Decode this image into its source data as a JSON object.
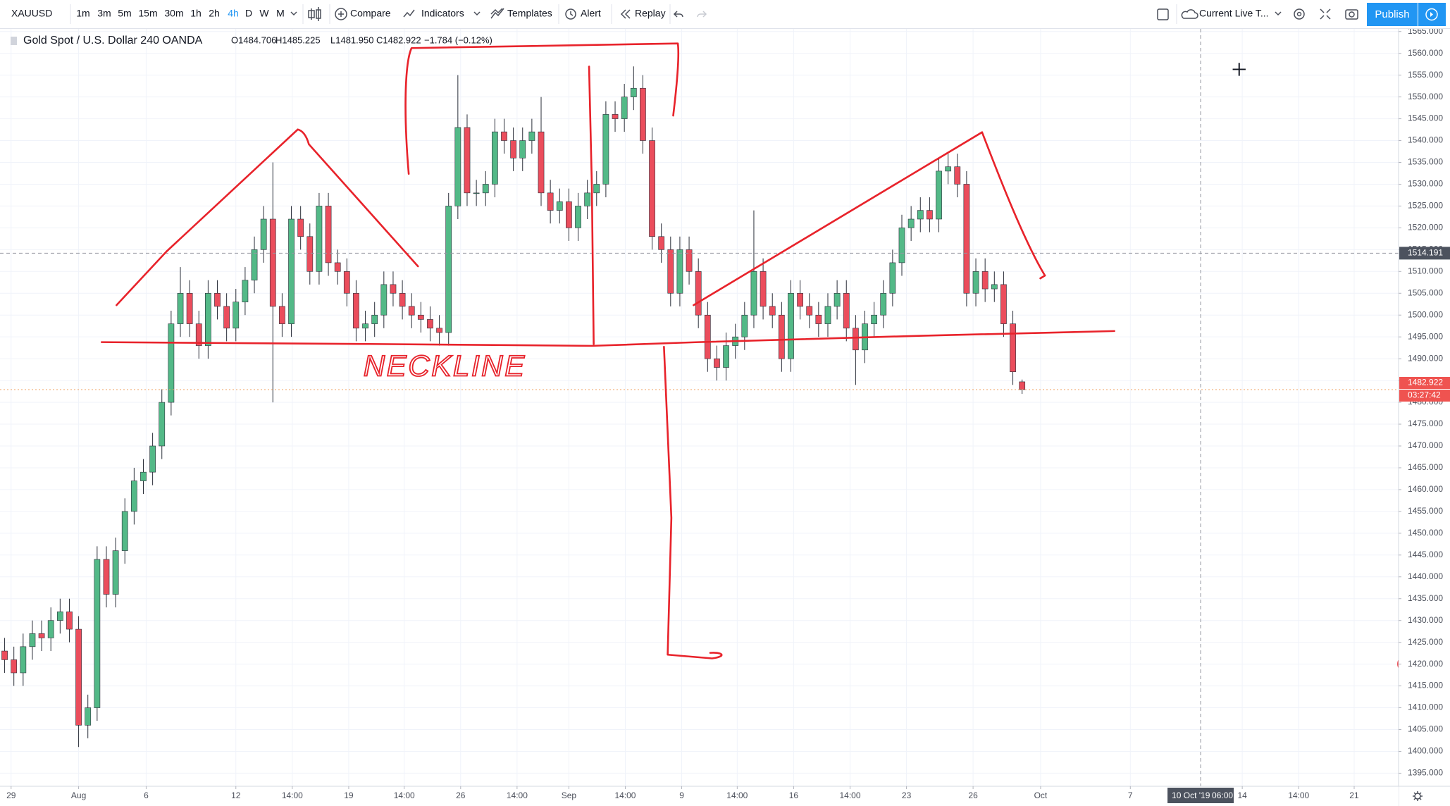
{
  "toolbar": {
    "symbol": "XAUUSD",
    "intervals": [
      "1m",
      "3m",
      "5m",
      "15m",
      "30m",
      "1h",
      "2h",
      "4h",
      "D",
      "W",
      "M"
    ],
    "compare": "Compare",
    "indicators": "Indicators",
    "templates": "Templates",
    "alert": "Alert",
    "replay": "Replay",
    "layout": "Current Live T...",
    "publish": "Publish"
  },
  "legend": {
    "title": "Gold Spot / U.S. Dollar  240  OANDA",
    "open": "O1484.706",
    "high": "H1485.225",
    "low": "L1481.950",
    "close": "C1482.922",
    "change": "−1.784 (−0.12%)"
  },
  "chart_data": {
    "type": "candlestick",
    "up_color": "#53b987",
    "down_color": "#eb4d5c",
    "grid": true,
    "open": [
      1423,
      1421,
      1418,
      1424,
      1427,
      1426,
      1430,
      1432,
      1428,
      1406,
      1410,
      1444,
      1436,
      1446,
      1455,
      1462,
      1464,
      1470,
      1480,
      1498,
      1505,
      1498,
      1493,
      1505,
      1502,
      1497,
      1503,
      1508,
      1515,
      1522,
      1502,
      1498,
      1522,
      1518,
      1510,
      1525,
      1512,
      1510,
      1505,
      1497,
      1498,
      1500,
      1507,
      1505,
      1502,
      1500,
      1499,
      1497,
      1496,
      1525,
      1543,
      1528,
      1528,
      1530,
      1542,
      1540,
      1536,
      1540,
      1542,
      1528,
      1524,
      1526,
      1520,
      1525,
      1528,
      1530,
      1546,
      1545,
      1550,
      1552,
      1540,
      1518,
      1515,
      1505,
      1515,
      1510,
      1500,
      1490,
      1488,
      1493,
      1495,
      1500,
      1510,
      1502,
      1500,
      1490,
      1505,
      1502,
      1500,
      1498,
      1502,
      1505,
      1497,
      1492,
      1498,
      1500,
      1505,
      1512,
      1520,
      1522,
      1524,
      1522,
      1533,
      1534,
      1530,
      1505,
      1510,
      1506,
      1507,
      1498,
      1484.706
    ],
    "high": [
      1426,
      1424,
      1427,
      1430,
      1430,
      1433,
      1435,
      1435,
      1431,
      1413,
      1447,
      1447,
      1449,
      1458,
      1465,
      1467,
      1473,
      1483,
      1501,
      1511,
      1508,
      1501,
      1508,
      1508,
      1505,
      1506,
      1511,
      1518,
      1525,
      1535,
      1505,
      1525,
      1525,
      1521,
      1528,
      1528,
      1515,
      1513,
      1508,
      1501,
      1503,
      1510,
      1510,
      1508,
      1505,
      1503,
      1502,
      1500,
      1528,
      1555,
      1546,
      1531,
      1533,
      1545,
      1545,
      1543,
      1543,
      1545,
      1550,
      1531,
      1529,
      1529,
      1528,
      1531,
      1533,
      1549,
      1549,
      1553,
      1557,
      1555,
      1543,
      1521,
      1518,
      1518,
      1518,
      1513,
      1503,
      1493,
      1496,
      1498,
      1503,
      1524,
      1513,
      1505,
      1503,
      1508,
      1508,
      1505,
      1503,
      1505,
      1508,
      1508,
      1500,
      1501,
      1503,
      1508,
      1515,
      1523,
      1525,
      1527,
      1527,
      1536,
      1537,
      1537,
      1533,
      1513,
      1513,
      1510,
      1510,
      1501,
      1485.225
    ],
    "low": [
      1418,
      1415,
      1415,
      1421,
      1423,
      1423,
      1427,
      1425,
      1401,
      1403,
      1407,
      1433,
      1433,
      1443,
      1452,
      1459,
      1461,
      1467,
      1477,
      1495,
      1495,
      1490,
      1490,
      1499,
      1494,
      1494,
      1500,
      1505,
      1512,
      1480,
      1495,
      1495,
      1515,
      1507,
      1507,
      1509,
      1507,
      1502,
      1494,
      1494,
      1495,
      1497,
      1502,
      1499,
      1497,
      1496,
      1494,
      1493,
      1493,
      1522,
      1525,
      1525,
      1525,
      1527,
      1537,
      1533,
      1533,
      1537,
      1525,
      1521,
      1521,
      1517,
      1517,
      1522,
      1525,
      1527,
      1542,
      1542,
      1547,
      1537,
      1515,
      1512,
      1502,
      1502,
      1507,
      1497,
      1487,
      1485,
      1485,
      1490,
      1492,
      1497,
      1499,
      1497,
      1487,
      1487,
      1499,
      1497,
      1495,
      1495,
      1499,
      1494,
      1484,
      1489,
      1495,
      1497,
      1502,
      1509,
      1517,
      1519,
      1519,
      1519,
      1530,
      1527,
      1502,
      1502,
      1503,
      1503,
      1495,
      1484,
      1481.95
    ],
    "close": [
      1421,
      1418,
      1424,
      1427,
      1426,
      1430,
      1432,
      1428,
      1406,
      1410,
      1444,
      1436,
      1446,
      1455,
      1462,
      1464,
      1470,
      1480,
      1498,
      1505,
      1498,
      1493,
      1505,
      1502,
      1497,
      1503,
      1508,
      1515,
      1522,
      1502,
      1498,
      1522,
      1518,
      1510,
      1525,
      1512,
      1510,
      1505,
      1497,
      1498,
      1500,
      1507,
      1505,
      1502,
      1500,
      1499,
      1497,
      1496,
      1525,
      1543,
      1528,
      1528,
      1530,
      1542,
      1540,
      1536,
      1540,
      1542,
      1528,
      1524,
      1526,
      1520,
      1525,
      1528,
      1530,
      1546,
      1545,
      1550,
      1552,
      1540,
      1518,
      1515,
      1505,
      1515,
      1510,
      1500,
      1490,
      1488,
      1493,
      1495,
      1500,
      1510,
      1502,
      1500,
      1490,
      1505,
      1502,
      1500,
      1498,
      1502,
      1505,
      1497,
      1492,
      1498,
      1500,
      1505,
      1512,
      1520,
      1522,
      1524,
      1522,
      1533,
      1534,
      1530,
      1505,
      1510,
      1506,
      1507,
      1498,
      1487,
      1482.922
    ],
    "xlim": [
      -0.5,
      150.7
    ],
    "xticks": [
      {
        "value": 0.7,
        "label": "29"
      },
      {
        "value": 8.0,
        "label": "Aug"
      },
      {
        "value": 15.3,
        "label": "6"
      },
      {
        "value": 25.0,
        "label": "12"
      },
      {
        "value": 31.1,
        "label": "14:00"
      },
      {
        "value": 37.2,
        "label": "19"
      },
      {
        "value": 43.2,
        "label": "14:00"
      },
      {
        "value": 49.3,
        "label": "26"
      },
      {
        "value": 55.4,
        "label": "14:00"
      },
      {
        "value": 61.0,
        "label": "Sep"
      },
      {
        "value": 67.1,
        "label": "14:00"
      },
      {
        "value": 73.2,
        "label": "9"
      },
      {
        "value": 79.2,
        "label": "14:00"
      },
      {
        "value": 85.3,
        "label": "16"
      },
      {
        "value": 91.4,
        "label": "14:00"
      },
      {
        "value": 97.5,
        "label": "23"
      },
      {
        "value": 104.7,
        "label": "26"
      },
      {
        "value": 112.0,
        "label": "Oct"
      },
      {
        "value": 121.7,
        "label": "7"
      },
      {
        "value": 133.8,
        "label": "14"
      },
      {
        "value": 139.9,
        "label": "14:00"
      },
      {
        "value": 145.9,
        "label": "21"
      }
    ],
    "ylim": [
      1392,
      1565.6
    ],
    "yticks": [
      {
        "value": 1395,
        "label": "1395.000"
      },
      {
        "value": 1400,
        "label": "1400.000"
      },
      {
        "value": 1405,
        "label": "1405.000"
      },
      {
        "value": 1410,
        "label": "1410.000"
      },
      {
        "value": 1415,
        "label": "1415.000"
      },
      {
        "value": 1420,
        "label": "1420.000"
      },
      {
        "value": 1425,
        "label": "1425.000"
      },
      {
        "value": 1430,
        "label": "1430.000"
      },
      {
        "value": 1435,
        "label": "1435.000"
      },
      {
        "value": 1440,
        "label": "1440.000"
      },
      {
        "value": 1445,
        "label": "1445.000"
      },
      {
        "value": 1450,
        "label": "1450.000"
      },
      {
        "value": 1455,
        "label": "1455.000"
      },
      {
        "value": 1460,
        "label": "1460.000"
      },
      {
        "value": 1465,
        "label": "1465.000"
      },
      {
        "value": 1470,
        "label": "1470.000"
      },
      {
        "value": 1475,
        "label": "1475.000"
      },
      {
        "value": 1480,
        "label": "1480.000"
      },
      {
        "value": 1485,
        "label": "1485.000"
      },
      {
        "value": 1490,
        "label": "1490.000"
      },
      {
        "value": 1495,
        "label": "1495.000"
      },
      {
        "value": 1500,
        "label": "1500.000"
      },
      {
        "value": 1505,
        "label": "1505.000"
      },
      {
        "value": 1510,
        "label": "1510.000"
      },
      {
        "value": 1515,
        "label": "1515.000"
      },
      {
        "value": 1520,
        "label": "1520.000"
      },
      {
        "value": 1525,
        "label": "1525.000"
      },
      {
        "value": 1530,
        "label": "1530.000"
      },
      {
        "value": 1535,
        "label": "1535.000"
      },
      {
        "value": 1540,
        "label": "1540.000"
      },
      {
        "value": 1545,
        "label": "1545.000"
      },
      {
        "value": 1550,
        "label": "1550.000"
      },
      {
        "value": 1555,
        "label": "1555.000"
      },
      {
        "value": 1560,
        "label": "1560.000"
      },
      {
        "value": 1565,
        "label": "1565.000"
      }
    ],
    "last_price": 1482.922,
    "countdown": "03:27:42",
    "crosshair_price": 1514.191,
    "crosshair_x": 129.3,
    "crosshair_date": "10 Oct '19",
    "crosshair_time": "06:00",
    "annotation": "NECKLINE"
  }
}
